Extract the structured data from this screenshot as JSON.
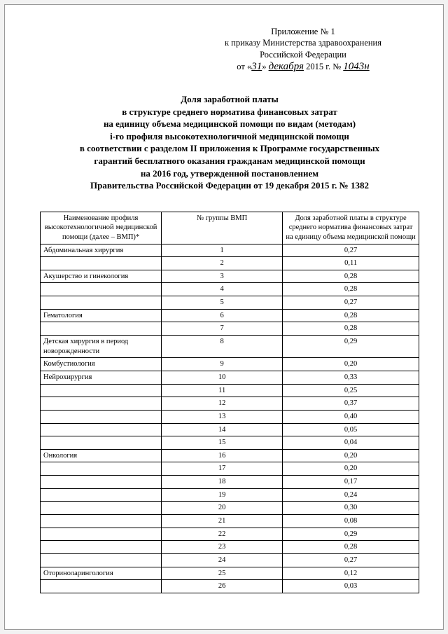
{
  "attachment": {
    "line1": "Приложение № 1",
    "line2": "к приказу Министерства здравоохранения",
    "line3": "Российской Федерации",
    "line4_prefix": "от «",
    "line4_day": "31",
    "line4_mid": "» ",
    "line4_month": "декабря",
    "line4_year": " 2015 г. № ",
    "line4_num": "1043н"
  },
  "title": [
    "Доля заработной платы",
    "в структуре среднего норматива финансовых затрат",
    "на единицу объема медицинской помощи по видам (методам)",
    "i-го профиля высокотехнологичной медицинской помощи",
    "в соответствии с разделом II приложения к Программе государственных",
    "гарантий бесплатного оказания гражданам медицинской помощи",
    "на 2016 год, утвержденной постановлением",
    "Правительства Российской Федерации от 19 декабря 2015 г. № 1382"
  ],
  "table": {
    "headers": [
      "Наименование профиля высокотехнологичной медицинской помощи (далее – ВМП)*",
      "№ группы ВМП",
      "Доля заработной платы в структуре среднего норматива финансовых затрат на единицу объема медицинской помощи"
    ],
    "rows": [
      {
        "name": "Абдоминальная хирургия",
        "groups": [
          {
            "g": "1",
            "v": "0,27"
          },
          {
            "g": "2",
            "v": "0,11"
          }
        ]
      },
      {
        "name": "Акушерство и гинекология",
        "groups": [
          {
            "g": "3",
            "v": "0,28"
          },
          {
            "g": "4",
            "v": "0,28"
          },
          {
            "g": "5",
            "v": "0,27"
          }
        ]
      },
      {
        "name": "Гематология",
        "groups": [
          {
            "g": "6",
            "v": "0,28"
          },
          {
            "g": "7",
            "v": "0,28"
          }
        ]
      },
      {
        "name": "Детская хирургия в период новорожденности",
        "groups": [
          {
            "g": "8",
            "v": "0,29"
          }
        ]
      },
      {
        "name": "Комбустиология",
        "groups": [
          {
            "g": "9",
            "v": "0,20"
          }
        ]
      },
      {
        "name": "Нейрохирургия",
        "groups": [
          {
            "g": "10",
            "v": "0,33"
          },
          {
            "g": "11",
            "v": "0,25"
          },
          {
            "g": "12",
            "v": "0,37"
          },
          {
            "g": "13",
            "v": "0,40"
          },
          {
            "g": "14",
            "v": "0,05"
          },
          {
            "g": "15",
            "v": "0,04"
          }
        ]
      },
      {
        "name": "Онкология",
        "groups": [
          {
            "g": "16",
            "v": "0,20"
          },
          {
            "g": "17",
            "v": "0,20"
          },
          {
            "g": "18",
            "v": "0,17"
          },
          {
            "g": "19",
            "v": "0,24"
          },
          {
            "g": "20",
            "v": "0,30"
          },
          {
            "g": "21",
            "v": "0,08"
          },
          {
            "g": "22",
            "v": "0,29"
          },
          {
            "g": "23",
            "v": "0,28"
          },
          {
            "g": "24",
            "v": "0,27"
          }
        ]
      },
      {
        "name": "Оториноларингология",
        "groups": [
          {
            "g": "25",
            "v": "0,12"
          },
          {
            "g": "26",
            "v": "0,03"
          }
        ]
      }
    ]
  }
}
